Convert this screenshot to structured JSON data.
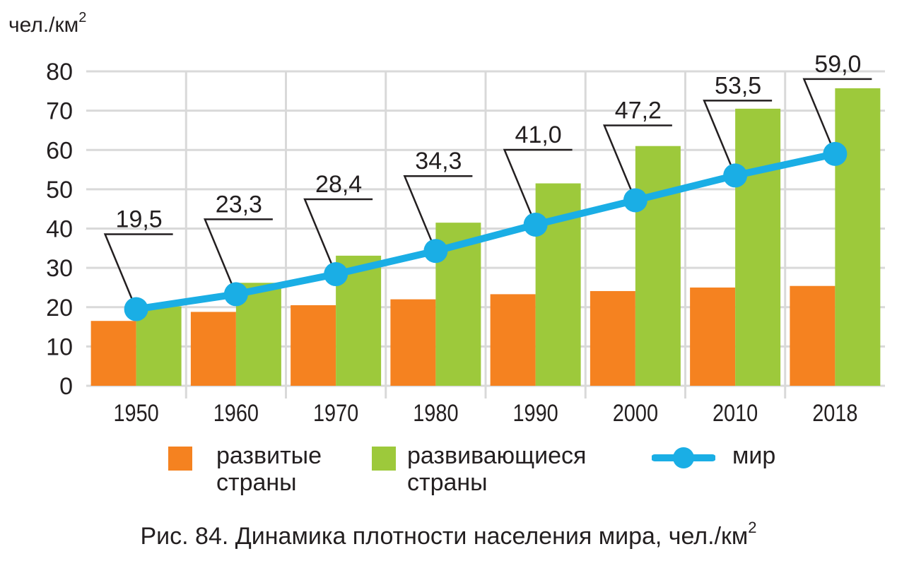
{
  "chart_data": {
    "type": "bar",
    "ylabel": "чел./км",
    "ylabel_sup": "2",
    "ylim": [
      0,
      80
    ],
    "yticks": [
      0,
      10,
      20,
      30,
      40,
      50,
      60,
      70,
      80
    ],
    "categories": [
      "1950",
      "1960",
      "1970",
      "1980",
      "1990",
      "2000",
      "2010",
      "2018"
    ],
    "series": [
      {
        "name": "развитые страны",
        "type": "bar",
        "color": "#f58220",
        "values": [
          16.5,
          18.8,
          20.5,
          22.0,
          23.3,
          24.1,
          25.0,
          25.4
        ]
      },
      {
        "name": "развивающиеся страны",
        "type": "bar",
        "color": "#9dc93b",
        "values": [
          20.2,
          26.2,
          33.1,
          41.5,
          51.5,
          61.0,
          70.5,
          75.7
        ]
      },
      {
        "name": "мир",
        "type": "line",
        "color": "#1aaee5",
        "values": [
          19.5,
          23.3,
          28.4,
          34.3,
          41.0,
          47.2,
          53.5,
          59.0
        ]
      }
    ],
    "data_labels": [
      "19,5",
      "23,3",
      "28,4",
      "34,3",
      "41,0",
      "47,2",
      "53,5",
      "59,0"
    ],
    "grid": true,
    "legend_position": "bottom"
  },
  "legend": {
    "developed_line1": "развитые",
    "developed_line2": "страны",
    "developing_line1": "развивающиеся",
    "developing_line2": "страны",
    "world": "мир"
  },
  "caption": {
    "text": "Рис. 84.  Динамика плотности населения мира, чел./км",
    "sup": "2"
  }
}
